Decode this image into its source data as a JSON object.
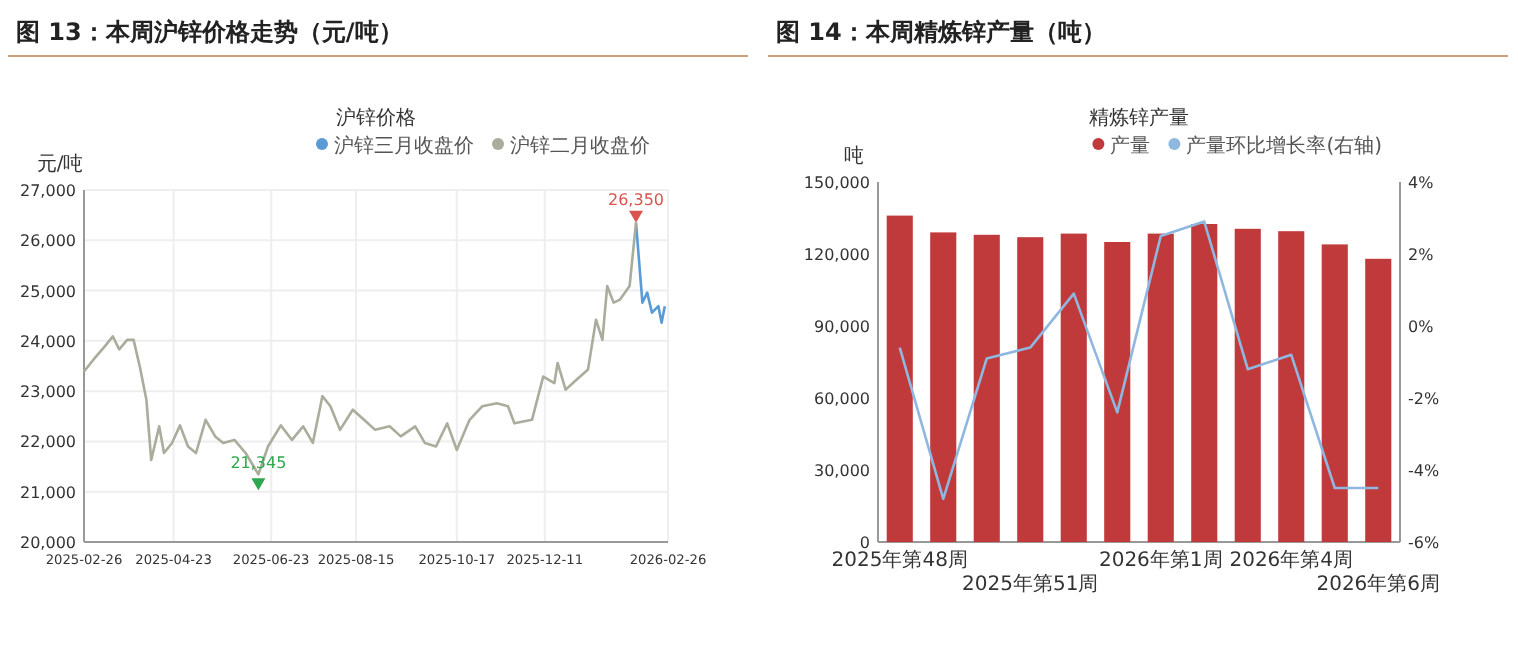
{
  "chart_data": [
    {
      "type": "line",
      "title": "图 13：本周沪锌价格走势（元/吨）",
      "subtitle": "沪锌价格",
      "ylabel": "元/吨",
      "xlim": [
        "2025-02-26",
        "2026-02-26"
      ],
      "xticks": [
        "2025-02-26",
        "2025-04-23",
        "2025-06-23",
        "2025-08-15",
        "2025-10-17",
        "2025-12-11",
        "2026-02-26"
      ],
      "ylim": [
        20000,
        27000
      ],
      "yticks": [
        {
          "value": 20000,
          "label": "20,000"
        },
        {
          "value": 21000,
          "label": "21,000"
        },
        {
          "value": 22000,
          "label": "22,000"
        },
        {
          "value": 23000,
          "label": "23,000"
        },
        {
          "value": 24000,
          "label": "24,000"
        },
        {
          "value": 25000,
          "label": "25,000"
        },
        {
          "value": 26000,
          "label": "26,000"
        },
        {
          "value": 27000,
          "label": "27,000"
        }
      ],
      "grid": true,
      "legend": "top right",
      "series": [
        {
          "name": "沪锌三月收盘价",
          "color": "#5b9bd5",
          "x": [
            "2026-02-06",
            "2026-02-10",
            "2026-02-13",
            "2026-02-16",
            "2026-02-20",
            "2026-02-22",
            "2026-02-24"
          ],
          "values": [
            26350,
            24760,
            24960,
            24560,
            24690,
            24360,
            24690
          ]
        },
        {
          "name": "沪锌二月收盘价",
          "color": "#a8ad9c",
          "x": [
            "2025-02-26",
            "2025-03-04",
            "2025-03-11",
            "2025-03-16",
            "2025-03-20",
            "2025-03-25",
            "2025-03-29",
            "2025-04-02",
            "2025-04-06",
            "2025-04-09",
            "2025-04-14",
            "2025-04-17",
            "2025-04-22",
            "2025-04-27",
            "2025-05-02",
            "2025-05-07",
            "2025-05-13",
            "2025-05-19",
            "2025-05-24",
            "2025-05-31",
            "2025-06-07",
            "2025-06-15",
            "2025-06-21",
            "2025-06-29",
            "2025-07-06",
            "2025-07-13",
            "2025-07-19",
            "2025-07-25",
            "2025-07-30",
            "2025-08-05",
            "2025-08-13",
            "2025-08-20",
            "2025-08-27",
            "2025-09-05",
            "2025-09-12",
            "2025-09-21",
            "2025-09-27",
            "2025-10-04",
            "2025-10-11",
            "2025-10-17",
            "2025-10-25",
            "2025-11-02",
            "2025-11-11",
            "2025-11-18",
            "2025-11-22",
            "2025-12-03",
            "2025-12-10",
            "2025-12-17",
            "2025-12-19",
            "2025-12-24",
            "2025-12-31",
            "2026-01-07",
            "2026-01-12",
            "2026-01-16",
            "2026-01-19",
            "2026-01-23",
            "2026-01-27",
            "2026-02-02",
            "2026-02-06"
          ],
          "values": [
            23390,
            23630,
            23890,
            24090,
            23830,
            24020,
            24020,
            23470,
            22830,
            21630,
            22300,
            21770,
            21970,
            22320,
            21900,
            21770,
            22430,
            22100,
            21970,
            22030,
            21770,
            21345,
            21900,
            22320,
            22030,
            22300,
            21970,
            22900,
            22700,
            22230,
            22630,
            22430,
            22230,
            22300,
            22100,
            22300,
            21970,
            21900,
            22360,
            21830,
            22430,
            22700,
            22760,
            22700,
            22360,
            22430,
            23290,
            23160,
            23560,
            23030,
            23230,
            23430,
            24420,
            24020,
            25090,
            24760,
            24820,
            25090,
            26350
          ]
        }
      ],
      "annotations": [
        {
          "text": "21,345",
          "x": "2025-06-15",
          "y": 21345
        },
        {
          "text": "26,350",
          "x": "2026-02-06",
          "y": 26350
        }
      ]
    },
    {
      "type": "bar",
      "title": "图 14：本周精炼锌产量（吨）",
      "subtitle": "精炼锌产量",
      "ylabel": "吨",
      "categories": [
        "2025年第48周",
        null,
        null,
        "2025年第51周",
        null,
        null,
        "2026年第1周",
        null,
        null,
        "2026年第4周",
        null,
        "2026年第6周"
      ],
      "ylim": [
        0,
        150000
      ],
      "yticks": [
        {
          "value": 0,
          "label": "0"
        },
        {
          "value": 30000,
          "label": "30,000"
        },
        {
          "value": 60000,
          "label": "60,000"
        },
        {
          "value": 90000,
          "label": "90,000"
        },
        {
          "value": 120000,
          "label": "120,000"
        },
        {
          "value": 150000,
          "label": "150,000"
        }
      ],
      "y2lim": [
        -6,
        4
      ],
      "y2ticks": [
        {
          "value": -6,
          "label": "-6%"
        },
        {
          "value": -4,
          "label": "-4%"
        },
        {
          "value": -2,
          "label": "-2%"
        },
        {
          "value": 0,
          "label": "0%"
        },
        {
          "value": 2,
          "label": "2%"
        },
        {
          "value": 4,
          "label": "4%"
        }
      ],
      "legend": "top right",
      "series": [
        {
          "name": "产量",
          "color": "#c0393b",
          "values": [
            136000,
            129000,
            128000,
            127000,
            128500,
            125000,
            128500,
            132500,
            130500,
            129500,
            124000,
            118000
          ]
        },
        {
          "name": "产量环比增长率(右轴)",
          "type": "line",
          "axis": "y2",
          "color": "#8fb8e0",
          "values": [
            -0.6,
            -4.8,
            -0.9,
            -0.6,
            0.9,
            -2.4,
            2.5,
            2.9,
            -1.2,
            -0.8,
            -4.5,
            -4.5
          ]
        }
      ]
    }
  ]
}
